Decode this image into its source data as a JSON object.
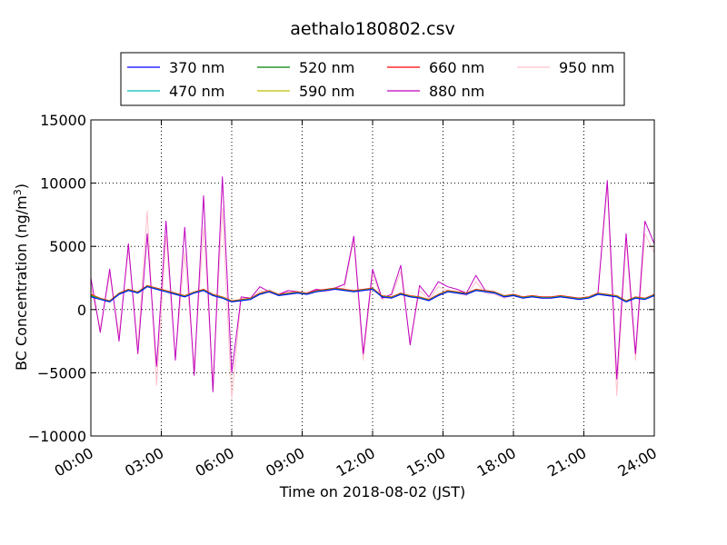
{
  "chart_data": {
    "type": "line",
    "title": "aethalo180802.csv",
    "xlabel": "Time on 2018-08-02 (JST)",
    "ylabel": "BC Concentration (ng/m",
    "ylabel_sup": "3",
    "ylabel_suffix": ")",
    "xlim": [
      0,
      24
    ],
    "ylim": [
      -10000,
      15000
    ],
    "xticks": [
      0,
      3,
      6,
      9,
      12,
      15,
      18,
      21,
      24
    ],
    "xtick_labels": [
      "00:00",
      "03:00",
      "06:00",
      "09:00",
      "12:00",
      "15:00",
      "18:00",
      "21:00",
      "24:00"
    ],
    "yticks": [
      -10000,
      -5000,
      0,
      5000,
      10000,
      15000
    ],
    "ytick_labels": [
      "−10000",
      "−5000",
      "0",
      "5000",
      "10000",
      "15000"
    ],
    "grid": true,
    "legend_position": "top",
    "x_unit": "hours",
    "x": [
      0.0,
      0.4,
      0.8,
      1.2,
      1.6,
      2.0,
      2.4,
      2.8,
      3.2,
      3.6,
      4.0,
      4.4,
      4.8,
      5.2,
      5.6,
      6.0,
      6.4,
      6.8,
      7.2,
      7.6,
      8.0,
      8.4,
      8.8,
      9.2,
      9.6,
      10.0,
      10.4,
      10.8,
      11.2,
      11.6,
      12.0,
      12.4,
      12.8,
      13.2,
      13.6,
      14.0,
      14.4,
      14.8,
      15.2,
      15.6,
      16.0,
      16.4,
      16.8,
      17.2,
      17.6,
      18.0,
      18.4,
      18.8,
      19.2,
      19.6,
      20.0,
      20.4,
      20.8,
      21.2,
      21.6,
      22.0,
      22.4,
      22.8,
      23.2,
      23.6,
      24.0
    ],
    "series": [
      {
        "name": "370 nm",
        "color": "#0000ff",
        "values": [
          1000,
          800,
          600,
          1200,
          1500,
          1300,
          1800,
          1600,
          1400,
          1200,
          1000,
          1300,
          1500,
          1100,
          900,
          600,
          700,
          800,
          1200,
          1400,
          1100,
          1200,
          1300,
          1200,
          1400,
          1500,
          1600,
          1500,
          1400,
          1500,
          1600,
          1000,
          900,
          1200,
          1000,
          900,
          700,
          1100,
          1400,
          1300,
          1200,
          1500,
          1400,
          1300,
          1000,
          1100,
          900,
          1000,
          900,
          900,
          1000,
          900,
          800,
          900,
          1200,
          1100,
          1000,
          600,
          900,
          800,
          1100
        ]
      },
      {
        "name": "470 nm",
        "color": "#00bfbf",
        "values": [
          1050,
          820,
          620,
          1220,
          1520,
          1320,
          1820,
          1620,
          1420,
          1220,
          1020,
          1320,
          1520,
          1120,
          920,
          620,
          720,
          820,
          1220,
          1420,
          1120,
          1220,
          1320,
          1220,
          1420,
          1520,
          1620,
          1520,
          1420,
          1520,
          1620,
          1020,
          920,
          1220,
          1020,
          920,
          720,
          1120,
          1420,
          1320,
          1220,
          1520,
          1420,
          1320,
          1020,
          1120,
          920,
          1020,
          920,
          920,
          1020,
          920,
          820,
          920,
          1220,
          1120,
          1020,
          620,
          920,
          820,
          1120
        ]
      },
      {
        "name": "520 nm",
        "color": "#008000",
        "values": [
          1100,
          840,
          640,
          1240,
          1540,
          1340,
          1840,
          1640,
          1440,
          1240,
          1040,
          1340,
          1540,
          1140,
          940,
          640,
          740,
          840,
          1240,
          1440,
          1140,
          1240,
          1340,
          1240,
          1440,
          1540,
          1640,
          1540,
          1440,
          1540,
          1640,
          1040,
          940,
          1240,
          1040,
          940,
          740,
          1140,
          1440,
          1340,
          1240,
          1540,
          1440,
          1340,
          1040,
          1140,
          940,
          1040,
          940,
          940,
          1040,
          940,
          840,
          940,
          1240,
          1140,
          1040,
          640,
          940,
          840,
          1140
        ]
      },
      {
        "name": "590 nm",
        "color": "#bfbf00",
        "values": [
          1150,
          860,
          660,
          1260,
          1560,
          1360,
          1860,
          1660,
          1460,
          1260,
          1060,
          1360,
          1560,
          1160,
          960,
          660,
          760,
          860,
          1260,
          1460,
          1160,
          1260,
          1360,
          1260,
          1460,
          1560,
          1660,
          1560,
          1460,
          1560,
          1660,
          1060,
          960,
          1260,
          1060,
          960,
          760,
          1160,
          1460,
          1360,
          1260,
          1560,
          1460,
          1360,
          1060,
          1160,
          960,
          1060,
          960,
          960,
          1060,
          960,
          860,
          960,
          1260,
          1160,
          1060,
          660,
          960,
          860,
          1160
        ]
      },
      {
        "name": "660 nm",
        "color": "#ff0000",
        "values": [
          1200,
          900,
          700,
          1300,
          1600,
          1400,
          1900,
          1700,
          1500,
          1300,
          1100,
          1400,
          1600,
          1200,
          1000,
          700,
          800,
          900,
          1300,
          1500,
          1200,
          1300,
          1400,
          1300,
          1500,
          1600,
          1700,
          1600,
          1500,
          1600,
          1700,
          1100,
          1000,
          1300,
          1100,
          1000,
          800,
          1200,
          1500,
          1400,
          1300,
          1600,
          1500,
          1400,
          1100,
          1200,
          1000,
          1100,
          1000,
          1000,
          1100,
          1000,
          900,
          1000,
          1300,
          1200,
          1100,
          700,
          1000,
          900,
          1200
        ]
      },
      {
        "name": "880 nm",
        "color": "#bf00bf",
        "values": [
          2500,
          -1800,
          3200,
          -2500,
          5200,
          -3500,
          6000,
          -4500,
          7000,
          -4000,
          6500,
          -5200,
          9000,
          -6500,
          10500,
          -5000,
          1000,
          900,
          1800,
          1400,
          1200,
          1500,
          1400,
          1300,
          1600,
          1500,
          1700,
          2000,
          5800,
          -3500,
          3200,
          900,
          1200,
          3500,
          -2800,
          1900,
          1000,
          2200,
          1800,
          1600,
          1300,
          2700,
          1500,
          1400,
          1000,
          1200,
          1000,
          1100,
          1000,
          1000,
          1100,
          1000,
          900,
          1000,
          1300,
          10200,
          -5500,
          6000,
          -3500,
          7000,
          5200
        ]
      },
      {
        "name": "950 nm",
        "color": "#ffc0cb",
        "values": [
          1800,
          -1500,
          2800,
          -2000,
          4800,
          -3000,
          7800,
          -6000,
          5800,
          -3800,
          4500,
          -4500,
          6500,
          -5800,
          8000,
          -7000,
          900,
          800,
          1500,
          1300,
          1200,
          1400,
          1300,
          1200,
          1500,
          1400,
          1600,
          1700,
          5500,
          -4000,
          2800,
          800,
          1000,
          3000,
          -2500,
          1500,
          800,
          1800,
          1500,
          1300,
          1100,
          2200,
          1300,
          1200,
          900,
          1100,
          900,
          1000,
          900,
          900,
          1000,
          900,
          800,
          900,
          1200,
          9800,
          -6800,
          5500,
          -4000,
          6000,
          4500
        ]
      }
    ]
  }
}
